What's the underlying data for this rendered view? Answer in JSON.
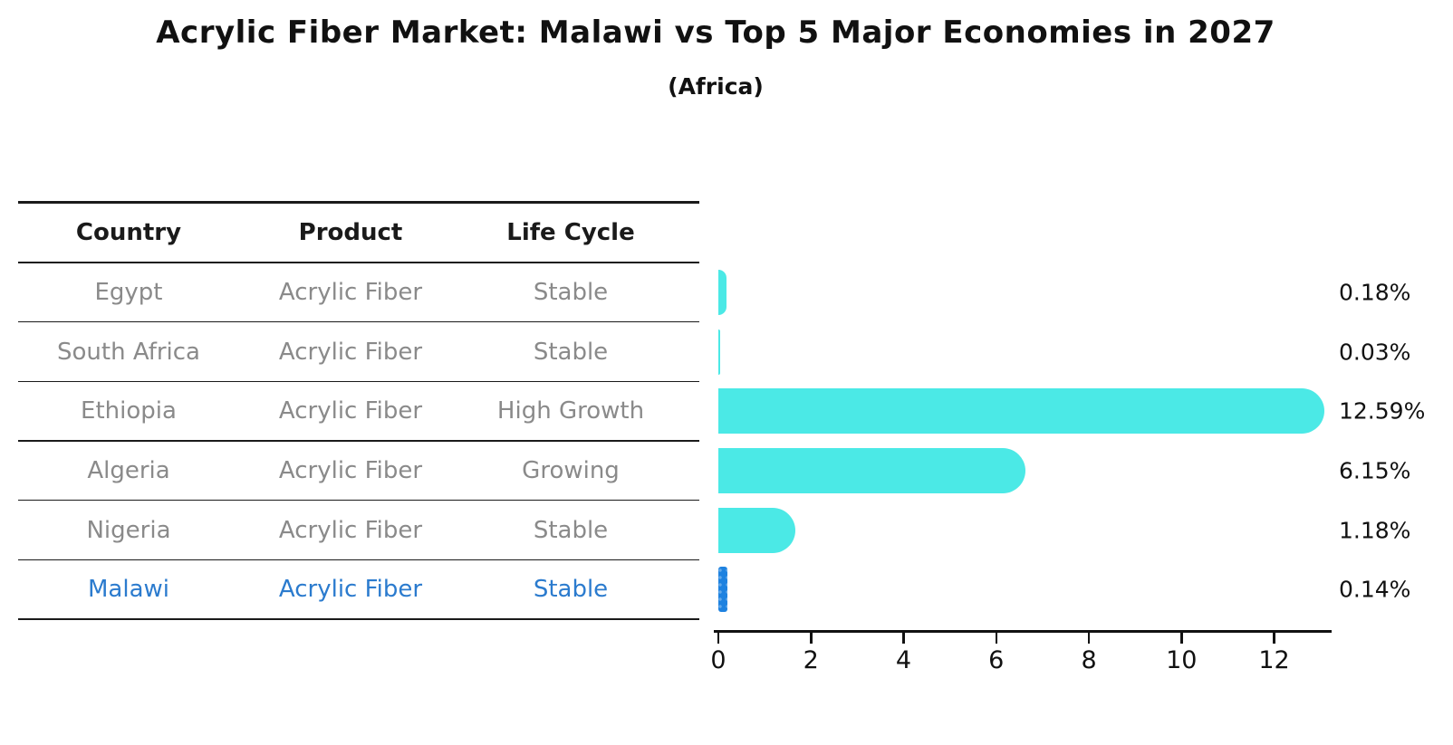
{
  "title": "Acrylic Fiber Market: Malawi vs Top 5 Major Economies in 2027",
  "subtitle": "(Africa)",
  "table": {
    "headers": [
      "Country",
      "Product",
      "Life Cycle"
    ],
    "rows": [
      {
        "country": "Egypt",
        "product": "Acrylic Fiber",
        "life_cycle": "Stable",
        "highlight": false
      },
      {
        "country": "South Africa",
        "product": "Acrylic Fiber",
        "life_cycle": "Stable",
        "highlight": false
      },
      {
        "country": "Ethiopia",
        "product": "Acrylic Fiber",
        "life_cycle": "High Growth",
        "highlight": false
      },
      {
        "country": "Algeria",
        "product": "Acrylic Fiber",
        "life_cycle": "Growing",
        "highlight": false
      },
      {
        "country": "Nigeria",
        "product": "Acrylic Fiber",
        "life_cycle": "Stable",
        "highlight": false
      },
      {
        "country": "Malawi",
        "product": "Acrylic Fiber",
        "life_cycle": "Stable",
        "highlight": true
      }
    ]
  },
  "chart_data": {
    "type": "bar",
    "orientation": "horizontal",
    "title": "Acrylic Fiber Market: Malawi vs Top 5 Major Economies in 2027 (Africa)",
    "categories": [
      "Egypt",
      "South Africa",
      "Ethiopia",
      "Algeria",
      "Nigeria",
      "Malawi"
    ],
    "values": [
      0.18,
      0.03,
      12.59,
      6.15,
      1.18,
      0.14
    ],
    "value_labels": [
      "0.18%",
      "0.03%",
      "12.59%",
      "6.15%",
      "1.18%",
      "0.14%"
    ],
    "xlabel": "",
    "ylabel": "",
    "xlim": [
      0,
      13.24
    ],
    "xticks": [
      "0",
      "2",
      "4",
      "6",
      "8",
      "10",
      "12"
    ],
    "xtick_values": [
      0,
      2,
      4,
      6,
      8,
      10,
      12
    ],
    "grid": false,
    "legend": false,
    "bar_color": "#4BE9E6",
    "highlight_color": "#1E82E0",
    "highlight_index": 5,
    "highlight_text_color": "#2B7BCE",
    "row_text_color": "#8a8a8a",
    "axis_color": "#111111"
  }
}
